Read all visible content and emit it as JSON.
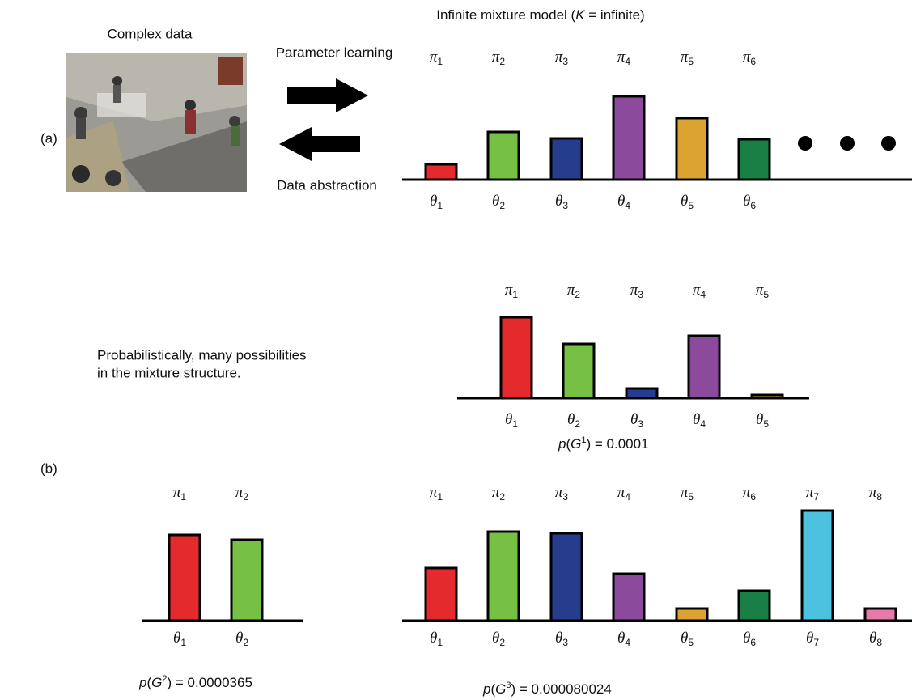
{
  "symbols": {
    "weight": "π",
    "param": "θ"
  },
  "panel_a": {
    "label": "(a)",
    "image_caption": "Complex data",
    "forward_label": "Parameter learning",
    "backward_label": "Data abstraction",
    "title": [
      "Infinite mixture model (",
      "K",
      " = infinite)"
    ],
    "indices": [
      "1",
      "2",
      "3",
      "4",
      "5",
      "6"
    ]
  },
  "panel_b": {
    "label": "(b)",
    "description": [
      "Probabilistically, many possibilities",
      "in the mixture structure."
    ],
    "charts": [
      {
        "indices": [
          "1",
          "2",
          "3",
          "4",
          "5"
        ],
        "probability": [
          "p",
          "(",
          "G",
          "1",
          ") = 0.0001"
        ]
      },
      {
        "indices": [
          "1",
          "2"
        ],
        "probability": [
          "p",
          "(",
          "G",
          "2",
          ") = 0.0000365"
        ]
      },
      {
        "indices": [
          "1",
          "2",
          "3",
          "4",
          "5",
          "6",
          "7",
          "8"
        ],
        "probability": [
          "p",
          "(",
          "G",
          "3",
          ") = 0.000080024"
        ]
      }
    ]
  }
}
